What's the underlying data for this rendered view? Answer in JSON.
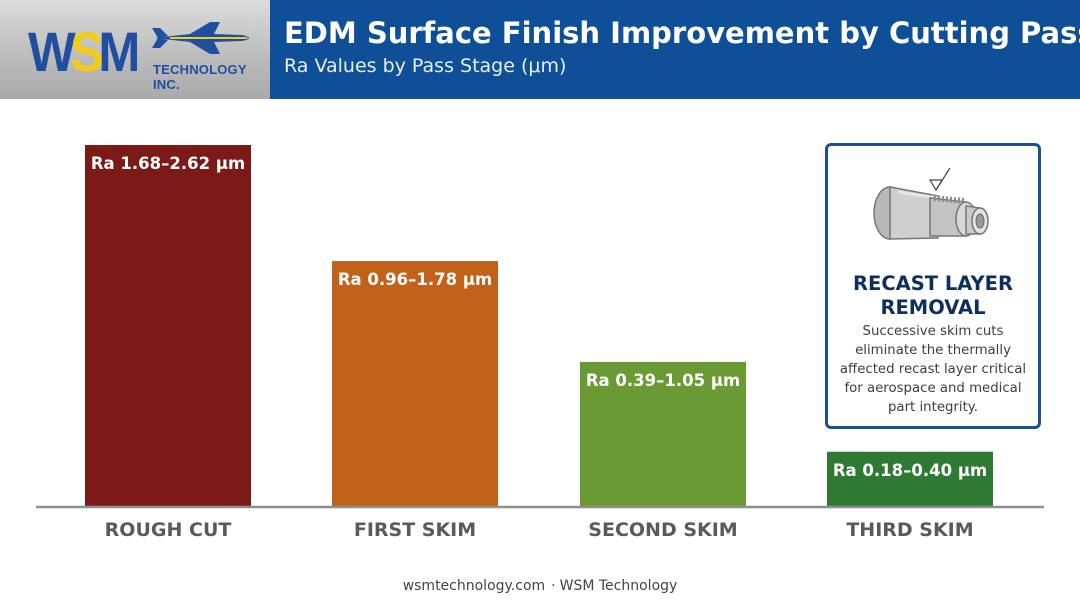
{
  "header": {
    "logo_text": "WSM",
    "logo_subtext": "TECHNOLOGY INC.",
    "title": "EDM Surface Finish Improvement by Cutting Pass",
    "subtitle": "Ra Values by Pass Stage (μm)",
    "title_bg_color": "#0f4f97",
    "logo_icon": "fighter-jet-icon"
  },
  "chart_data": {
    "type": "bar",
    "title": "EDM Surface Finish Improvement by Cutting Pass",
    "subtitle": "Ra Values by Pass Stage (μm)",
    "categories": [
      "ROUGH CUT",
      "FIRST SKIM",
      "SECOND SKIM",
      "THIRD SKIM"
    ],
    "ranges": [
      [
        1.68,
        2.62
      ],
      [
        0.96,
        1.78
      ],
      [
        0.39,
        1.05
      ],
      [
        0.18,
        0.4
      ]
    ],
    "values": [
      2.62,
      1.78,
      1.05,
      0.4
    ],
    "data_labels": [
      "Ra 1.68–2.62 μm",
      "Ra 0.96–1.78 μm",
      "Ra 0.39–1.05 μm",
      "Ra 0.18–0.40 μm"
    ],
    "colors": [
      "#7b1a16",
      "#c2621a",
      "#6a9a33",
      "#2f7a33"
    ],
    "ylim": [
      0,
      2.62
    ],
    "grid": false,
    "legend": "none"
  },
  "callout": {
    "title": "RECAST LAYER REMOVAL",
    "body": "Successive skim cuts eliminate the thermally affected recast layer critical for aerospace and medical part integrity.",
    "icon": "machined-part-icon",
    "border_color": "#1d4f93"
  },
  "footer": {
    "website": "wsmtechnology.com",
    "separator": "·",
    "company": "WSM Technology"
  }
}
